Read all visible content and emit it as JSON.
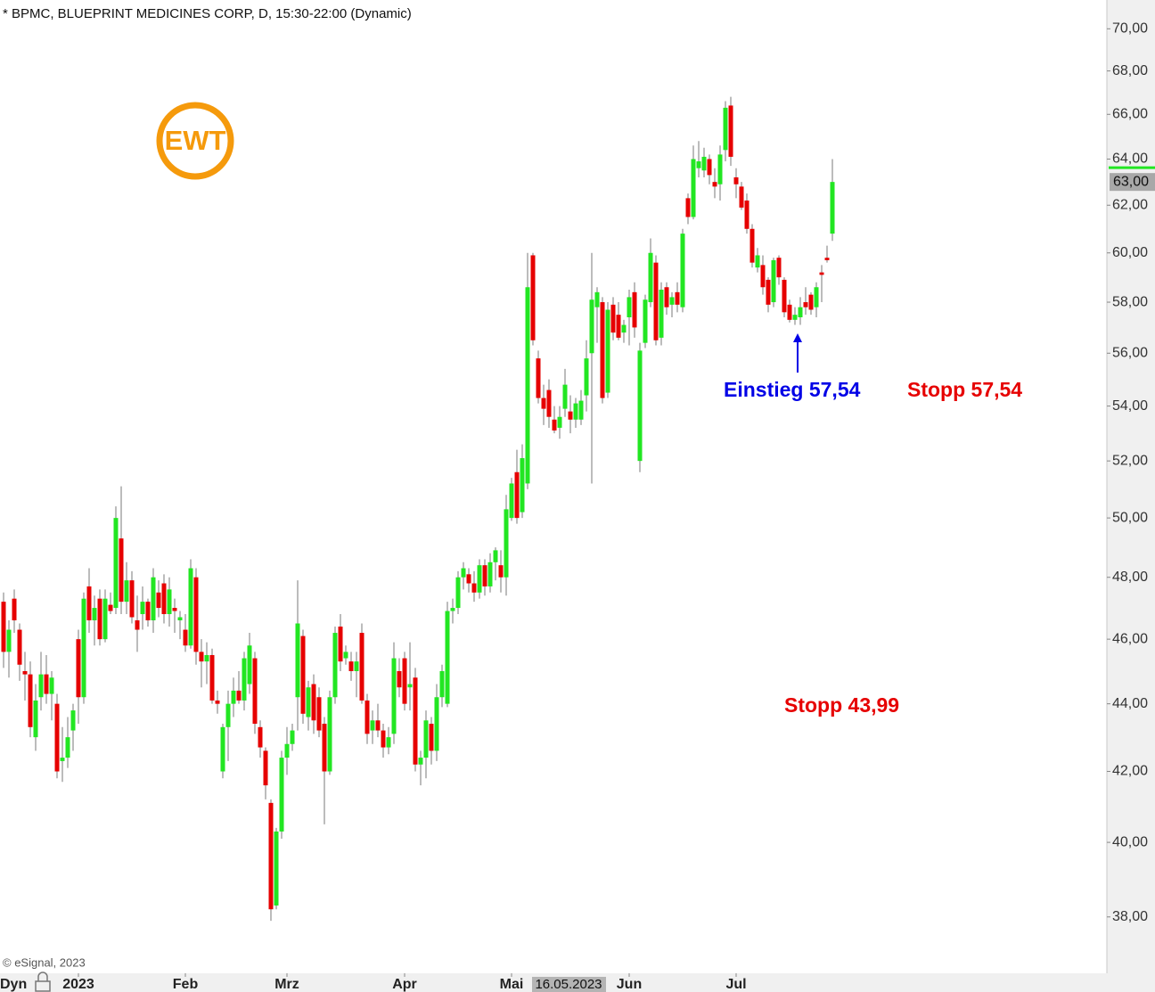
{
  "chart_data": {
    "type": "candlestick",
    "title": "* BPMC, BLUEPRINT MEDICINES CORP, D, 15:30-22:00 (Dynamic)",
    "logo": "EWT",
    "source": "© eSignal, 2023",
    "period_label": "Dyn",
    "crosshair_label": "16.05.2023",
    "last_price": {
      "value": 63,
      "label": "63,00"
    },
    "log_scale": true,
    "up_color": "#22e622",
    "down_color": "#e60000",
    "wick_color": "#7a7a7a",
    "ylim": [
      36.6,
      71.4
    ],
    "yticks": [
      {
        "value": 38,
        "label": "38,00"
      },
      {
        "value": 40,
        "label": "40,00"
      },
      {
        "value": 42,
        "label": "42,00"
      },
      {
        "value": 44,
        "label": "44,00"
      },
      {
        "value": 46,
        "label": "46,00"
      },
      {
        "value": 48,
        "label": "48,00"
      },
      {
        "value": 50,
        "label": "50,00"
      },
      {
        "value": 52,
        "label": "52,00"
      },
      {
        "value": 54,
        "label": "54,00"
      },
      {
        "value": 56,
        "label": "56,00"
      },
      {
        "value": 58,
        "label": "58,00"
      },
      {
        "value": 60,
        "label": "60,00"
      },
      {
        "value": 62,
        "label": "62,00"
      },
      {
        "value": 64,
        "label": "64,00"
      },
      {
        "value": 66,
        "label": "66,00"
      },
      {
        "value": 68,
        "label": "68,00"
      },
      {
        "value": 70,
        "label": "70,00"
      }
    ],
    "annotations": [
      {
        "text": "Einstieg 57,54",
        "color": "#0000e6"
      },
      {
        "text": "Stopp 57,54",
        "color": "#e60000"
      },
      {
        "text": "Stopp 43,99",
        "color": "#e60000"
      }
    ],
    "categories": [
      null,
      null,
      null,
      null,
      null,
      null,
      null,
      null,
      null,
      null,
      null,
      null,
      null,
      null,
      "2023",
      null,
      null,
      null,
      null,
      null,
      null,
      null,
      null,
      null,
      null,
      null,
      null,
      null,
      null,
      null,
      null,
      null,
      null,
      null,
      "Feb",
      null,
      null,
      null,
      null,
      null,
      null,
      null,
      null,
      null,
      null,
      null,
      null,
      null,
      null,
      null,
      null,
      null,
      null,
      "Mrz",
      null,
      null,
      null,
      null,
      null,
      null,
      null,
      null,
      null,
      null,
      null,
      null,
      null,
      null,
      null,
      null,
      null,
      null,
      null,
      null,
      null,
      "Apr",
      null,
      null,
      null,
      null,
      null,
      null,
      null,
      null,
      null,
      null,
      null,
      null,
      null,
      null,
      null,
      null,
      null,
      null,
      null,
      "Mai",
      null,
      null,
      null,
      null,
      null,
      null,
      null,
      null,
      null,
      null,
      null,
      null,
      null,
      null,
      null,
      null,
      null,
      null,
      null,
      null,
      null,
      "Jun",
      null,
      null,
      null,
      null,
      null,
      null,
      null,
      null,
      null,
      null,
      null,
      null,
      null,
      null,
      null,
      null,
      null,
      null,
      null,
      "Jul",
      null,
      null,
      null,
      null,
      null,
      null,
      null,
      null,
      null,
      null,
      null,
      null,
      null,
      null,
      null,
      null,
      null,
      null
    ],
    "open": [
      47.2,
      45.6,
      47.3,
      46.3,
      45.0,
      44.9,
      43.0,
      44.2,
      44.9,
      44.3,
      44.0,
      42.3,
      42.4,
      43.2,
      46.0,
      44.2,
      47.7,
      46.6,
      47.3,
      46.0,
      47.1,
      47.0,
      49.3,
      47.2,
      47.9,
      46.6,
      46.8,
      47.2,
      46.6,
      47.5,
      47.8,
      46.8,
      47.0,
      46.6,
      46.3,
      45.8,
      48.0,
      45.6,
      45.3,
      45.5,
      44.1,
      42.0,
      43.3,
      44.0,
      44.4,
      44.1,
      44.6,
      45.4,
      43.3,
      42.6,
      41.1,
      38.3,
      40.3,
      42.4,
      42.8,
      44.2,
      46.1,
      43.6,
      44.6,
      44.2,
      43.4,
      42.0,
      44.2,
      46.4,
      45.4,
      45.3,
      45.0,
      46.2,
      44.1,
      43.2,
      43.5,
      43.2,
      42.7,
      43.1,
      45.0,
      45.4,
      44.5,
      44.8,
      42.2,
      42.4,
      43.4,
      42.6,
      44.2,
      44.0,
      46.9,
      47.0,
      48.0,
      48.1,
      47.8,
      47.5,
      48.4,
      47.7,
      48.5,
      48.4,
      48.0,
      50.0,
      51.6,
      50.2,
      51.2,
      59.9,
      55.8,
      54.3,
      54.6,
      53.5,
      53.2,
      53.9,
      53.8,
      53.5,
      53.5,
      54.4,
      56.0,
      57.8,
      58.0,
      54.5,
      57.9,
      57.5,
      56.8,
      57.4,
      58.4,
      52.0,
      56.4,
      58.0,
      59.6,
      56.6,
      58.6,
      57.9,
      58.4,
      57.8,
      62.3,
      61.5,
      63.6,
      63.5,
      64.0,
      63.0,
      62.9,
      64.4,
      66.4,
      63.2,
      62.8,
      62.2,
      61.0,
      59.4,
      59.5,
      58.9,
      58.0,
      59.8,
      58.9,
      57.9,
      57.3,
      57.4,
      58.0,
      58.3,
      57.8,
      59.2,
      59.8,
      60.8
    ],
    "high": [
      47.5,
      46.6,
      47.6,
      46.5,
      45.6,
      45.3,
      44.6,
      45.6,
      45.5,
      45.0,
      44.3,
      43.3,
      43.6,
      44.0,
      46.3,
      47.5,
      48.3,
      47.4,
      47.6,
      47.6,
      47.5,
      50.4,
      51.1,
      48.5,
      48.2,
      47.4,
      47.7,
      47.3,
      48.3,
      47.9,
      48.1,
      48.0,
      47.3,
      46.9,
      46.8,
      48.6,
      48.3,
      46.0,
      45.9,
      45.7,
      44.4,
      43.4,
      44.4,
      44.8,
      45.0,
      45.6,
      46.2,
      45.6,
      43.5,
      42.7,
      41.2,
      40.4,
      42.6,
      43.3,
      43.4,
      47.9,
      46.3,
      44.7,
      44.9,
      44.5,
      43.6,
      44.4,
      46.4,
      46.8,
      45.8,
      45.6,
      45.6,
      46.5,
      44.3,
      43.8,
      44.0,
      43.4,
      43.3,
      45.9,
      45.4,
      45.6,
      45.9,
      45.1,
      42.6,
      43.8,
      43.6,
      44.6,
      45.2,
      47.2,
      47.3,
      48.2,
      48.5,
      48.3,
      48.2,
      48.6,
      48.6,
      48.8,
      49.0,
      48.9,
      50.8,
      51.4,
      52.4,
      52.6,
      60.0,
      60.0,
      56.1,
      54.8,
      55.0,
      54.0,
      54.0,
      55.4,
      54.4,
      54.3,
      54.6,
      56.5,
      60.0,
      58.6,
      58.2,
      58.0,
      58.2,
      58.0,
      57.3,
      58.5,
      58.8,
      56.4,
      58.3,
      60.6,
      59.9,
      58.8,
      58.8,
      58.4,
      58.8,
      61.0,
      62.5,
      64.6,
      64.8,
      64.5,
      64.2,
      63.6,
      64.6,
      66.6,
      66.8,
      63.6,
      63.0,
      62.5,
      61.2,
      60.2,
      59.9,
      59.0,
      59.8,
      59.9,
      59.0,
      58.1,
      57.8,
      58.2,
      58.6,
      58.4,
      58.8,
      59.5,
      60.3,
      64.0
    ],
    "low": [
      45.1,
      44.8,
      46.2,
      44.7,
      44.1,
      43.0,
      42.6,
      43.8,
      44.0,
      43.5,
      41.8,
      41.7,
      42.1,
      42.6,
      43.4,
      44.0,
      46.2,
      45.8,
      45.8,
      45.9,
      46.8,
      46.8,
      46.8,
      46.8,
      46.5,
      45.6,
      46.3,
      46.4,
      46.2,
      46.7,
      46.5,
      46.4,
      46.2,
      46.0,
      45.6,
      45.7,
      45.2,
      44.5,
      44.6,
      44.0,
      43.7,
      41.8,
      42.3,
      43.6,
      44.0,
      43.8,
      44.3,
      43.1,
      42.4,
      41.2,
      37.9,
      38.2,
      40.1,
      41.9,
      42.6,
      43.2,
      43.4,
      43.2,
      43.1,
      43.0,
      40.5,
      41.9,
      44.0,
      45.0,
      45.2,
      44.7,
      44.2,
      44.0,
      42.8,
      42.8,
      43.0,
      42.4,
      42.5,
      42.8,
      44.2,
      43.8,
      43.8,
      42.0,
      41.6,
      41.8,
      42.2,
      42.3,
      43.9,
      43.9,
      46.5,
      46.8,
      47.6,
      47.5,
      47.2,
      47.3,
      47.4,
      47.5,
      47.9,
      47.5,
      47.4,
      49.9,
      49.8,
      50.0,
      51.0,
      56.3,
      54.1,
      53.3,
      53.2,
      53.0,
      52.8,
      53.6,
      53.0,
      53.2,
      53.3,
      53.8,
      51.2,
      56.4,
      54.1,
      54.3,
      56.5,
      56.5,
      56.4,
      56.3,
      56.6,
      51.6,
      56.2,
      57.8,
      56.3,
      56.3,
      57.5,
      57.4,
      57.6,
      57.6,
      61.2,
      61.4,
      63.2,
      63.2,
      62.9,
      62.3,
      62.2,
      63.9,
      63.7,
      62.3,
      61.8,
      60.8,
      59.4,
      59.2,
      58.3,
      57.6,
      57.8,
      58.7,
      57.4,
      57.2,
      57.1,
      57.1,
      57.5,
      57.5,
      57.4,
      58.0,
      59.6,
      60.5
    ],
    "close": [
      45.6,
      46.3,
      46.6,
      45.2,
      44.9,
      43.3,
      44.1,
      44.9,
      44.3,
      44.8,
      42.0,
      42.4,
      43.0,
      43.8,
      44.2,
      47.3,
      46.6,
      47.0,
      46.0,
      47.3,
      46.9,
      50.0,
      47.2,
      47.9,
      46.7,
      46.3,
      47.2,
      46.6,
      48.0,
      47.0,
      46.8,
      47.6,
      46.9,
      46.7,
      45.8,
      48.3,
      45.6,
      45.3,
      45.5,
      44.1,
      44.0,
      43.3,
      44.0,
      44.4,
      44.1,
      45.4,
      45.8,
      43.4,
      42.7,
      41.6,
      38.2,
      40.3,
      42.4,
      42.8,
      43.2,
      46.5,
      43.7,
      44.5,
      43.5,
      43.2,
      42.0,
      44.2,
      46.2,
      45.3,
      45.6,
      45.0,
      45.3,
      44.1,
      43.1,
      43.5,
      43.2,
      42.7,
      43.0,
      45.4,
      44.5,
      44.0,
      44.6,
      42.2,
      42.4,
      43.5,
      42.6,
      44.2,
      45.0,
      46.9,
      47.0,
      48.0,
      48.3,
      47.8,
      47.5,
      48.4,
      47.7,
      48.5,
      48.9,
      48.0,
      50.3,
      51.2,
      50.0,
      52.1,
      58.6,
      56.5,
      54.3,
      53.9,
      53.6,
      53.1,
      53.6,
      54.8,
      53.5,
      54.1,
      54.2,
      55.8,
      58.1,
      58.4,
      54.3,
      57.7,
      56.8,
      56.6,
      57.1,
      58.2,
      57.0,
      56.1,
      58.1,
      60.0,
      56.5,
      58.5,
      57.8,
      58.2,
      57.9,
      60.8,
      61.5,
      64.0,
      63.9,
      64.1,
      63.3,
      62.8,
      64.2,
      66.3,
      64.1,
      62.9,
      61.9,
      61.0,
      59.6,
      59.9,
      58.6,
      57.9,
      59.7,
      59.0,
      57.6,
      57.3,
      57.5,
      57.8,
      57.8,
      57.7,
      58.6,
      59.1,
      59.7,
      63.0
    ]
  }
}
